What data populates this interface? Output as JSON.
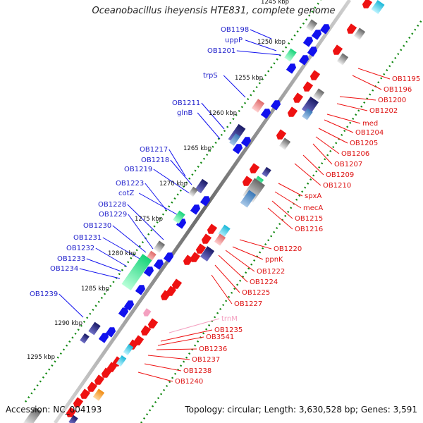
{
  "title": "Oceanobacillus iheyensis HTE831, complete genome",
  "footer": {
    "accession": "Accession: NC_004193",
    "topology": "Topology: circular; Length: 3,630,528 bp; Genes: 3,591"
  },
  "scale": {
    "top_partial": "1245 kbp",
    "ticks": [
      "1250 kbp",
      "1255 kbp",
      "1260 kbp",
      "1265 kbp",
      "1270 kbp",
      "1275 kbp",
      "1280 kbp",
      "1285 kbp",
      "1290 kbp",
      "1295 kbp"
    ]
  },
  "left_labels": [
    "OB1198",
    "uppP",
    "OB1201",
    "trpS",
    "OB1211",
    "glnB",
    "OB1217",
    "OB1218",
    "OB1219",
    "OB1223",
    "cotZ",
    "OB1228",
    "OB1229",
    "OB1230",
    "OB1231",
    "OB1232",
    "OB1233",
    "OB1234",
    "OB1239"
  ],
  "right_labels": [
    "OB1195",
    "OB1196",
    "OB1200",
    "OB1202",
    "med",
    "OB1204",
    "OB1205",
    "OB1206",
    "OB1207",
    "OB1209",
    "OB1210",
    "spxA",
    "mecA",
    "OB1215",
    "OB1216",
    "OB1220",
    "ppnK",
    "OB1222",
    "OB1224",
    "OB1225",
    "OB1227",
    "trnM",
    "OB1235",
    "OB3541",
    "OB1236",
    "OB1237",
    "OB1238",
    "OB1240"
  ],
  "colors": {
    "forward_strand": "#1111ee",
    "reverse_strand": "#ee1111",
    "backbone": "#8a8a8a",
    "tick_dots": "#118811",
    "rna_gene": "#f4a0c0"
  }
}
